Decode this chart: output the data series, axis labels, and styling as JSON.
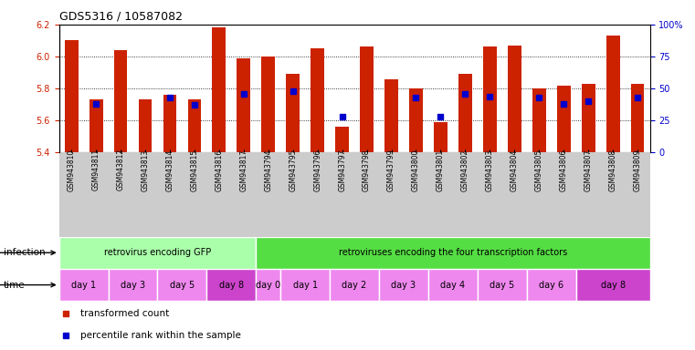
{
  "title": "GDS5316 / 10587082",
  "samples": [
    "GSM943810",
    "GSM943811",
    "GSM943812",
    "GSM943813",
    "GSM943814",
    "GSM943815",
    "GSM943816",
    "GSM943817",
    "GSM943794",
    "GSM943795",
    "GSM943796",
    "GSM943797",
    "GSM943798",
    "GSM943799",
    "GSM943800",
    "GSM943801",
    "GSM943802",
    "GSM943803",
    "GSM943804",
    "GSM943805",
    "GSM943806",
    "GSM943807",
    "GSM943808",
    "GSM943809"
  ],
  "transformed_count": [
    6.1,
    5.73,
    6.04,
    5.73,
    5.76,
    5.73,
    6.18,
    5.99,
    6.0,
    5.89,
    6.05,
    5.56,
    6.06,
    5.86,
    5.8,
    5.59,
    5.89,
    6.06,
    6.07,
    5.8,
    5.82,
    5.83,
    6.13,
    5.83
  ],
  "percentile_rank": [
    null,
    38,
    null,
    null,
    43,
    37,
    null,
    46,
    null,
    48,
    null,
    28,
    null,
    null,
    43,
    28,
    46,
    44,
    null,
    43,
    38,
    40,
    null,
    43
  ],
  "ylim_left": [
    5.4,
    6.2
  ],
  "ylim_right": [
    0,
    100
  ],
  "yticks_left": [
    5.4,
    5.6,
    5.8,
    6.0,
    6.2
  ],
  "yticks_right": [
    0,
    25,
    50,
    75,
    100
  ],
  "bar_color": "#cc2200",
  "percentile_color": "#0000cc",
  "bar_bottom": 5.4,
  "infection_groups": [
    {
      "label": "retrovirus encoding GFP",
      "start": 0,
      "end": 8,
      "color": "#aaffaa"
    },
    {
      "label": "retroviruses encoding the four transcription factors",
      "start": 8,
      "end": 24,
      "color": "#55dd44"
    }
  ],
  "time_groups": [
    {
      "label": "day 1",
      "start": 0,
      "end": 2,
      "color": "#ee88ee"
    },
    {
      "label": "day 3",
      "start": 2,
      "end": 4,
      "color": "#ee88ee"
    },
    {
      "label": "day 5",
      "start": 4,
      "end": 6,
      "color": "#ee88ee"
    },
    {
      "label": "day 8",
      "start": 6,
      "end": 8,
      "color": "#cc44cc"
    },
    {
      "label": "day 0",
      "start": 8,
      "end": 9,
      "color": "#ee88ee"
    },
    {
      "label": "day 1",
      "start": 9,
      "end": 11,
      "color": "#ee88ee"
    },
    {
      "label": "day 2",
      "start": 11,
      "end": 13,
      "color": "#ee88ee"
    },
    {
      "label": "day 3",
      "start": 13,
      "end": 15,
      "color": "#ee88ee"
    },
    {
      "label": "day 4",
      "start": 15,
      "end": 17,
      "color": "#ee88ee"
    },
    {
      "label": "day 5",
      "start": 17,
      "end": 19,
      "color": "#ee88ee"
    },
    {
      "label": "day 6",
      "start": 19,
      "end": 21,
      "color": "#ee88ee"
    },
    {
      "label": "day 8",
      "start": 21,
      "end": 24,
      "color": "#cc44cc"
    }
  ],
  "legend_items": [
    {
      "label": "transformed count",
      "color": "#cc2200"
    },
    {
      "label": "percentile rank within the sample",
      "color": "#0000cc"
    }
  ],
  "infection_label": "infection",
  "time_label": "time",
  "bg_color": "#ffffff",
  "tick_label_color_left": "#cc2200",
  "tick_label_color_right": "#0000cc",
  "xtick_bg_color": "#cccccc",
  "grid_yticks": [
    5.6,
    5.8,
    6.0
  ]
}
